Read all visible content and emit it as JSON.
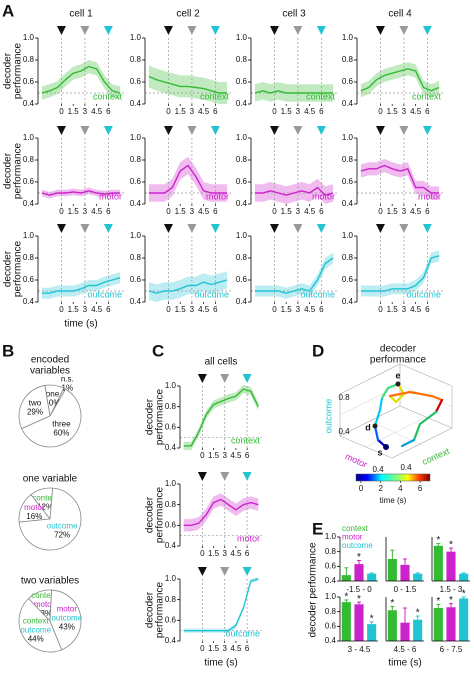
{
  "panel_labels": [
    "A",
    "B",
    "C",
    "D",
    "E"
  ],
  "events": [
    {
      "time": 0,
      "color": "#111111"
    },
    {
      "time": 3,
      "color": "#999999"
    },
    {
      "time": 6,
      "color": "#22c4d4"
    }
  ],
  "chance": 0.5,
  "chart_data": [
    {
      "type": "line",
      "title": "cell 1",
      "ylabel": [
        "decoder",
        "performance"
      ],
      "xlim": [
        -3,
        8
      ],
      "ylim": [
        0.4,
        1.0
      ],
      "yticks": [
        0.4,
        0.6,
        0.8,
        {
          "value": 1,
          "label": "1.0"
        }
      ],
      "xticks": [
        0,
        1.5,
        3,
        4.5,
        6
      ],
      "x": [
        -2.5,
        -1.5,
        -0.5,
        0.5,
        1.5,
        2.5,
        3.5,
        4.5,
        5.5,
        6.5,
        7.5
      ],
      "series": [
        {
          "name": "context",
          "color": "#33bb33",
          "values": [
            0.5,
            0.52,
            0.55,
            0.62,
            0.68,
            0.7,
            0.74,
            0.72,
            0.6,
            0.52,
            0.5
          ],
          "error": 0.06
        }
      ]
    },
    {
      "type": "line",
      "title": "cell 2",
      "xlim": [
        -3,
        8
      ],
      "ylim": [
        0.4,
        1.0
      ],
      "yticks": [
        0.4,
        0.6,
        0.8,
        {
          "value": 1,
          "label": "1.0"
        }
      ],
      "xticks": [
        0,
        1.5,
        3,
        4.5,
        6
      ],
      "x": [
        -2.5,
        -1.5,
        -0.5,
        0.5,
        1.5,
        2.5,
        3.5,
        4.5,
        5.5,
        6.5,
        7.5
      ],
      "series": [
        {
          "name": "context",
          "color": "#33bb33",
          "values": [
            0.65,
            0.62,
            0.6,
            0.58,
            0.56,
            0.56,
            0.55,
            0.54,
            0.52,
            0.5,
            0.5
          ],
          "error": 0.1
        }
      ]
    },
    {
      "type": "line",
      "title": "cell 3",
      "xlim": [
        -3,
        8
      ],
      "ylim": [
        0.4,
        1.0
      ],
      "yticks": [
        0.4,
        0.6,
        0.8,
        {
          "value": 1,
          "label": "1.0"
        }
      ],
      "xticks": [
        0,
        1.5,
        3,
        4.5,
        6
      ],
      "x": [
        -2.5,
        -1.5,
        -0.5,
        0.5,
        1.5,
        2.5,
        3.5,
        4.5,
        5.5,
        6.5,
        7.5
      ],
      "series": [
        {
          "name": "context",
          "color": "#33bb33",
          "values": [
            0.5,
            0.52,
            0.5,
            0.52,
            0.5,
            0.5,
            0.5,
            0.5,
            0.5,
            0.5,
            0.5
          ],
          "error": 0.08
        }
      ]
    },
    {
      "type": "line",
      "title": "cell 4",
      "xlim": [
        -3,
        8
      ],
      "ylim": [
        0.4,
        1.0
      ],
      "yticks": [
        0.4,
        0.6,
        0.8,
        {
          "value": 1,
          "label": "1.0"
        }
      ],
      "xticks": [
        0,
        1.5,
        3,
        4.5,
        6
      ],
      "x": [
        -2.5,
        -1.5,
        -0.5,
        0.5,
        1.5,
        2.5,
        3.5,
        4.5,
        5.5,
        6.5,
        7.5
      ],
      "series": [
        {
          "name": "context",
          "color": "#33bb33",
          "values": [
            0.52,
            0.55,
            0.62,
            0.66,
            0.68,
            0.7,
            0.72,
            0.7,
            0.55,
            0.52,
            0.55
          ],
          "error": 0.06
        }
      ]
    },
    {
      "type": "line",
      "ylabel": [
        "decoder",
        "performance"
      ],
      "xlim": [
        -3,
        8
      ],
      "ylim": [
        0.4,
        1.0
      ],
      "yticks": [
        0.4,
        0.6,
        0.8,
        {
          "value": 1,
          "label": "1.0"
        }
      ],
      "xticks": [
        0,
        1.5,
        3,
        4.5,
        6
      ],
      "x": [
        -2.5,
        -1.5,
        -0.5,
        0.5,
        1.5,
        2.5,
        3.5,
        4.5,
        5.5,
        6.5,
        7.5
      ],
      "series": [
        {
          "name": "motor",
          "color": "#cc22cc",
          "values": [
            0.5,
            0.48,
            0.5,
            0.5,
            0.51,
            0.5,
            0.52,
            0.5,
            0.49,
            0.5,
            0.5
          ],
          "error": 0.03
        }
      ]
    },
    {
      "type": "line",
      "xlim": [
        -3,
        8
      ],
      "ylim": [
        0.4,
        1.0
      ],
      "yticks": [
        0.4,
        0.6,
        0.8,
        {
          "value": 1,
          "label": "1.0"
        }
      ],
      "xticks": [
        0,
        1.5,
        3,
        4.5,
        6
      ],
      "x": [
        -2.5,
        -1.5,
        -0.5,
        0.5,
        1.5,
        2.5,
        3.5,
        4.5,
        5.5,
        6.5,
        7.5
      ],
      "series": [
        {
          "name": "motor",
          "color": "#cc22cc",
          "values": [
            0.5,
            0.5,
            0.5,
            0.55,
            0.7,
            0.75,
            0.65,
            0.52,
            0.5,
            0.5,
            0.5
          ],
          "error": 0.08
        }
      ]
    },
    {
      "type": "line",
      "xlim": [
        -3,
        8
      ],
      "ylim": [
        0.4,
        1.0
      ],
      "yticks": [
        0.4,
        0.6,
        0.8,
        {
          "value": 1,
          "label": "1.0"
        }
      ],
      "xticks": [
        0,
        1.5,
        3,
        4.5,
        6
      ],
      "x": [
        -2.5,
        -1.5,
        -0.5,
        0.5,
        1.5,
        2.5,
        3.5,
        4.5,
        5.5,
        6.5,
        7.5
      ],
      "series": [
        {
          "name": "motor",
          "color": "#cc22cc",
          "values": [
            0.5,
            0.5,
            0.52,
            0.5,
            0.48,
            0.5,
            0.52,
            0.5,
            0.55,
            0.48,
            0.5
          ],
          "error": 0.08
        }
      ]
    },
    {
      "type": "line",
      "xlim": [
        -3,
        8
      ],
      "ylim": [
        0.4,
        1.0
      ],
      "yticks": [
        0.4,
        0.6,
        0.8,
        {
          "value": 1,
          "label": "1.0"
        }
      ],
      "xticks": [
        0,
        1.5,
        3,
        4.5,
        6
      ],
      "x": [
        -2.5,
        -1.5,
        -0.5,
        0.5,
        1.5,
        2.5,
        3.5,
        4.5,
        5.5,
        6.5,
        7.5
      ],
      "series": [
        {
          "name": "motor",
          "color": "#cc22cc",
          "values": [
            0.7,
            0.72,
            0.72,
            0.75,
            0.72,
            0.7,
            0.72,
            0.55,
            0.55,
            0.5,
            0.5
          ],
          "error": 0.06
        }
      ]
    },
    {
      "type": "line",
      "ylabel": [
        "decoder",
        "performance"
      ],
      "xlabel": "time (s)",
      "xlim": [
        -3,
        8
      ],
      "ylim": [
        0.4,
        1.0
      ],
      "yticks": [
        0.4,
        0.6,
        0.8,
        {
          "value": 1,
          "label": "1.0"
        }
      ],
      "xticks": [
        0,
        1.5,
        3,
        4.5,
        6
      ],
      "x": [
        -2.5,
        -1.5,
        -0.5,
        0.5,
        1.5,
        2.5,
        3.5,
        4.5,
        5.5,
        6.5,
        7.5
      ],
      "series": [
        {
          "name": "outcome",
          "color": "#22c4d4",
          "values": [
            0.48,
            0.48,
            0.5,
            0.5,
            0.5,
            0.52,
            0.55,
            0.55,
            0.58,
            0.6,
            0.62
          ],
          "error": 0.05
        }
      ]
    },
    {
      "type": "line",
      "xlim": [
        -3,
        8
      ],
      "ylim": [
        0.4,
        1.0
      ],
      "yticks": [
        0.4,
        0.6,
        0.8,
        {
          "value": 1,
          "label": "1.0"
        }
      ],
      "xticks": [
        0,
        1.5,
        3,
        4.5,
        6
      ],
      "x": [
        -2.5,
        -1.5,
        -0.5,
        0.5,
        1.5,
        2.5,
        3.5,
        4.5,
        5.5,
        6.5,
        7.5
      ],
      "series": [
        {
          "name": "outcome",
          "color": "#22c4d4",
          "values": [
            0.5,
            0.48,
            0.5,
            0.5,
            0.52,
            0.55,
            0.55,
            0.58,
            0.56,
            0.58,
            0.6
          ],
          "error": 0.08
        }
      ]
    },
    {
      "type": "line",
      "xlim": [
        -3,
        8
      ],
      "ylim": [
        0.4,
        1.0
      ],
      "yticks": [
        0.4,
        0.6,
        0.8,
        {
          "value": 1,
          "label": "1.0"
        }
      ],
      "xticks": [
        0,
        1.5,
        3,
        4.5,
        6
      ],
      "x": [
        -2.5,
        -1.5,
        -0.5,
        0.5,
        1.5,
        2.5,
        3.5,
        4.5,
        5.5,
        6.5,
        7.5
      ],
      "series": [
        {
          "name": "outcome",
          "color": "#22c4d4",
          "values": [
            0.5,
            0.5,
            0.5,
            0.5,
            0.48,
            0.5,
            0.52,
            0.5,
            0.6,
            0.75,
            0.8
          ],
          "error": 0.05
        }
      ]
    },
    {
      "type": "line",
      "xlim": [
        -3,
        8
      ],
      "ylim": [
        0.4,
        1.0
      ],
      "yticks": [
        0.4,
        0.6,
        0.8,
        {
          "value": 1,
          "label": "1.0"
        }
      ],
      "xticks": [
        0,
        1.5,
        3,
        4.5,
        6
      ],
      "x": [
        -2.5,
        -1.5,
        -0.5,
        0.5,
        1.5,
        2.5,
        3.5,
        4.5,
        5.5,
        6.5,
        7.5
      ],
      "series": [
        {
          "name": "outcome",
          "color": "#22c4d4",
          "values": [
            0.5,
            0.5,
            0.5,
            0.5,
            0.52,
            0.52,
            0.52,
            0.55,
            0.62,
            0.8,
            0.82
          ],
          "error": 0.05
        }
      ]
    },
    {
      "type": "line",
      "title": "all cells",
      "ylabel": [
        "decoder",
        "performance"
      ],
      "xlim": [
        -3,
        8
      ],
      "ylim": [
        0.4,
        1.0
      ],
      "yticks": [
        0.4,
        0.6,
        0.8,
        {
          "value": 1,
          "label": "1.0"
        }
      ],
      "xticks": [
        0,
        1.5,
        3,
        4.5,
        6
      ],
      "x": [
        -2.5,
        -1.5,
        -0.5,
        0.5,
        1.5,
        2.5,
        3.5,
        4.5,
        5.5,
        6.5,
        7.5
      ],
      "series": [
        {
          "name": "context",
          "color": "#33bb33",
          "values": [
            0.42,
            0.42,
            0.55,
            0.72,
            0.82,
            0.85,
            0.88,
            0.9,
            0.97,
            0.95,
            0.8
          ],
          "error": 0.04
        }
      ]
    },
    {
      "type": "line",
      "ylabel": [
        "decoder",
        "performance"
      ],
      "xlim": [
        -3,
        8
      ],
      "ylim": [
        0.4,
        1.0
      ],
      "yticks": [
        0.4,
        0.6,
        0.8,
        {
          "value": 1,
          "label": "1.0"
        }
      ],
      "xticks": [
        0,
        1.5,
        3,
        4.5,
        6
      ],
      "x": [
        -2.5,
        -1.5,
        -0.5,
        0.5,
        1.5,
        2.5,
        3.5,
        4.5,
        5.5,
        6.5,
        7.5
      ],
      "series": [
        {
          "name": "motor",
          "color": "#cc22cc",
          "values": [
            0.6,
            0.6,
            0.62,
            0.7,
            0.82,
            0.85,
            0.8,
            0.75,
            0.8,
            0.82,
            0.8
          ],
          "error": 0.06
        }
      ]
    },
    {
      "type": "line",
      "ylabel": [
        "decoder",
        "performance"
      ],
      "xlabel": "time (s)",
      "xlim": [
        -3,
        8
      ],
      "ylim": [
        0.4,
        1.0
      ],
      "yticks": [
        0.4,
        0.6,
        0.8,
        {
          "value": 1,
          "label": "1.0"
        }
      ],
      "xticks": [
        0,
        1.5,
        3,
        4.5,
        6
      ],
      "x": [
        -2.5,
        -1.5,
        -0.5,
        0.5,
        1.5,
        2.5,
        3.5,
        4.5,
        5.5,
        6.5,
        7.5
      ],
      "series": [
        {
          "name": "outcome",
          "color": "#22c4d4",
          "values": [
            0.5,
            0.5,
            0.5,
            0.5,
            0.5,
            0.5,
            0.5,
            0.55,
            0.72,
            0.98,
            1.0
          ],
          "error": 0.02
        }
      ]
    },
    {
      "type": "pie",
      "title": [
        "encoded",
        "variables"
      ],
      "categories": [
        "n.s.",
        "one",
        "two",
        "three"
      ],
      "values": [
        1,
        10,
        29,
        60
      ],
      "value_labels": [
        "1%",
        "10%",
        "29%",
        "60%"
      ]
    },
    {
      "type": "pie",
      "title": "one variable",
      "categories": [
        "context",
        "motor",
        "outcome"
      ],
      "label_colors": [
        "#33bb33",
        "#cc22cc",
        "#22c4d4"
      ],
      "values": [
        12,
        16,
        72
      ],
      "value_labels": [
        "12%",
        "16%",
        "72%"
      ]
    },
    {
      "type": "pie",
      "title": "two variables",
      "categories": [
        [
          "context",
          "motor"
        ],
        [
          "context",
          "outcome"
        ],
        [
          "motor",
          "outcome"
        ]
      ],
      "label_colors": [
        [
          "#33bb33",
          "#cc22cc"
        ],
        [
          "#33bb33",
          "#22c4d4"
        ],
        [
          "#cc22cc",
          "#22c4d4"
        ]
      ],
      "values": [
        13,
        44,
        43
      ],
      "value_labels": [
        "13%",
        "44%",
        "43%"
      ]
    },
    {
      "type": "trajectory3d",
      "title": [
        "decoder",
        "performance"
      ],
      "axes": [
        {
          "label": "outcome",
          "color": "#22c4d4",
          "ticks": [
            0.4,
            0.8
          ]
        },
        {
          "label": "motor",
          "color": "#cc22cc",
          "ticks": [
            0.4
          ]
        },
        {
          "label": "context",
          "color": "#33bb33",
          "ticks": [
            0.4
          ]
        }
      ],
      "points": [
        "s",
        "d",
        "e"
      ],
      "colorbar": {
        "lim": [
          -0.5,
          7
        ],
        "ticks": [
          0,
          2,
          4,
          6
        ],
        "label": "time (s)"
      }
    },
    {
      "type": "bar",
      "period": "-1.5 - 0",
      "ylabel": "decoder performance",
      "categories": [
        "context",
        "motor",
        "outcome"
      ],
      "colors": [
        "#33bb33",
        "#cc22cc",
        "#22c4d4"
      ],
      "values": [
        0.48,
        0.63,
        0.5
      ],
      "errors": [
        0.1,
        0.05,
        0.01
      ],
      "annotations": [
        {
          "index": 1,
          "text": "*"
        }
      ],
      "ylim": [
        0.4,
        1.0
      ],
      "yticks": [
        0.4,
        0.6,
        0.8,
        {
          "value": 1,
          "label": "1.0"
        }
      ]
    },
    {
      "type": "bar",
      "period": "0 - 1.5",
      "colors": [
        "#33bb33",
        "#cc22cc",
        "#22c4d4"
      ],
      "values": [
        0.7,
        0.62,
        0.5
      ],
      "errors": [
        0.12,
        0.08,
        0.01
      ],
      "ylim": [
        0.4,
        1.0
      ]
    },
    {
      "type": "bar",
      "period": "1.5 - 3",
      "colors": [
        "#33bb33",
        "#cc22cc",
        "#22c4d4"
      ],
      "values": [
        0.88,
        0.8,
        0.5
      ],
      "errors": [
        0.03,
        0.05,
        0.01
      ],
      "annotations": [
        {
          "index": 0,
          "text": "*"
        },
        {
          "index": 1,
          "text": "*"
        }
      ],
      "ylim": [
        0.4,
        1.0
      ]
    },
    {
      "type": "bar",
      "period": "3 - 4.5",
      "colors": [
        "#33bb33",
        "#cc22cc",
        "#22c4d4"
      ],
      "values": [
        0.93,
        0.9,
        0.63
      ],
      "errors": [
        0.03,
        0.03,
        0.03
      ],
      "annotations": [
        {
          "index": 0,
          "text": "*"
        },
        {
          "index": 1,
          "text": "*"
        },
        {
          "index": 2,
          "text": "*"
        }
      ],
      "ylim": [
        0.4,
        1.0
      ],
      "yticks": [
        0.4,
        0.6,
        0.8,
        {
          "value": 1,
          "label": "1.0"
        }
      ]
    },
    {
      "type": "bar",
      "period": "4.5 - 6",
      "xlabel": "time (s)",
      "colors": [
        "#33bb33",
        "#cc22cc",
        "#22c4d4"
      ],
      "values": [
        0.82,
        0.65,
        0.69
      ],
      "errors": [
        0.05,
        0.2,
        0.05
      ],
      "annotations": [
        {
          "index": 0,
          "text": "*"
        },
        {
          "index": 2,
          "text": "*"
        }
      ],
      "ylim": [
        0.4,
        1.0
      ]
    },
    {
      "type": "bar",
      "period": "6 - 7.5",
      "colors": [
        "#33bb33",
        "#cc22cc",
        "#22c4d4"
      ],
      "values": [
        0.85,
        0.86,
        0.98
      ],
      "errors": [
        0.05,
        0.05,
        0.02
      ],
      "annotations": [
        {
          "index": 0,
          "text": "*"
        },
        {
          "index": 1,
          "text": "*"
        },
        {
          "index": 2,
          "text": "*"
        }
      ],
      "ylim": [
        0.4,
        1.0
      ]
    }
  ]
}
